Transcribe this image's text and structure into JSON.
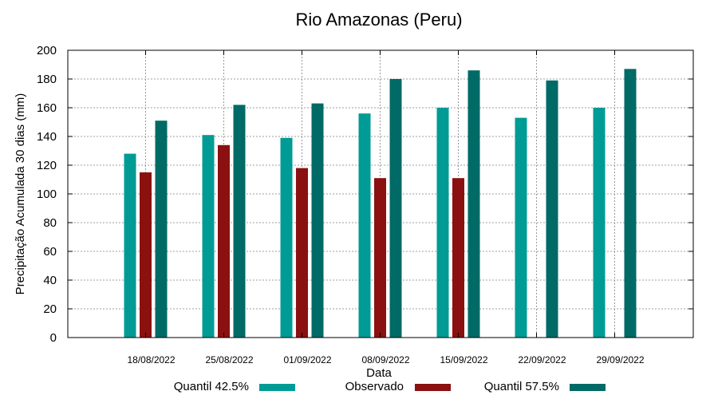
{
  "chart_data": {
    "type": "bar",
    "title": "Rio Amazonas (Peru)",
    "xlabel": "Data",
    "ylabel": "Precipitação Acumulada 30 dias (mm)",
    "ylim": [
      0,
      200
    ],
    "yticks": [
      0,
      20,
      40,
      60,
      80,
      100,
      120,
      140,
      160,
      180,
      200
    ],
    "grid": true,
    "legend_position": "bottom",
    "categories": [
      "18/08/2022",
      "25/08/2022",
      "01/09/2022",
      "08/09/2022",
      "15/09/2022",
      "22/09/2022",
      "29/09/2022"
    ],
    "series": [
      {
        "name": "Quantil 42.5%",
        "color": "#009b95",
        "values": [
          128,
          141,
          139,
          156,
          160,
          153,
          160
        ]
      },
      {
        "name": "Observado",
        "color": "#8b1010",
        "values": [
          115,
          134,
          118,
          111,
          111,
          null,
          null
        ]
      },
      {
        "name": "Quantil 57.5%",
        "color": "#006a66",
        "values": [
          151,
          162,
          163,
          180,
          186,
          179,
          187
        ]
      }
    ]
  }
}
